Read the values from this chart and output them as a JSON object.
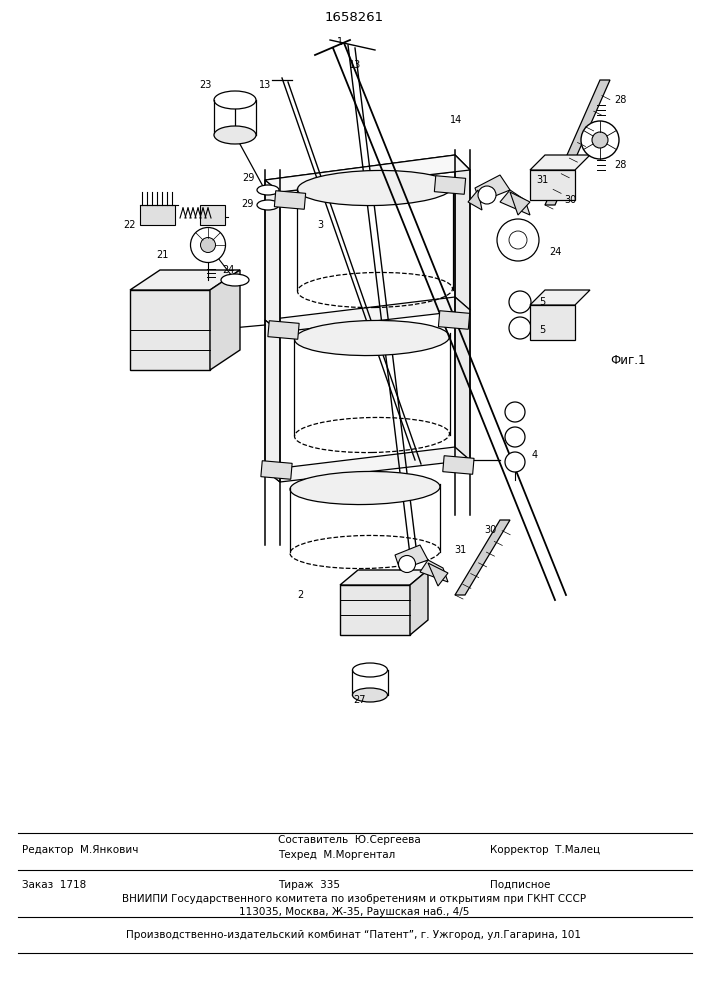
{
  "title": "1658261",
  "background_color": "#ffffff",
  "line_color": "#000000",
  "footer": {
    "line1_left": "Редактор  М.Янкович",
    "line1_center_top": "Составитель  Ю.Сергеева",
    "line1_center_bot": "Техред  М.Моргентал",
    "line1_right": "Корректор  Т.Малец",
    "line2_left": "Заказ  1718",
    "line2_center": "Тираж  335",
    "line2_right": "Подписное",
    "line3": "ВНИИПИ Государственного комитета по изобретениям и открытиям при ГКНТ СССР",
    "line4": "113035, Москва, Ж-35, Раушская наб., 4/5",
    "line5": "Производственно-издательский комбинат “Патент”, г. Ужгород, ул.Гагарина, 101"
  }
}
